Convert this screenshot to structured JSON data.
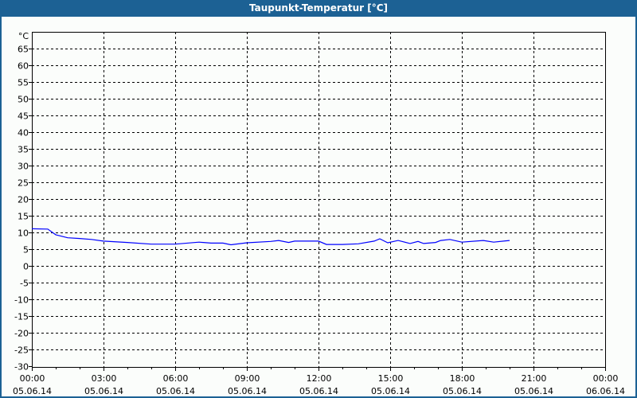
{
  "window": {
    "title": "Taupunkt-Temperatur [°C]"
  },
  "chart_data": {
    "type": "line",
    "title": "Taupunkt-Temperatur [°C]",
    "ylabel": "°C",
    "ylim": [
      -30,
      70
    ],
    "yticks": [
      65,
      60,
      55,
      50,
      45,
      40,
      35,
      30,
      25,
      20,
      15,
      10,
      5,
      0,
      -5,
      -10,
      -15,
      -20,
      -25,
      -30
    ],
    "xlim_hours": [
      0,
      24
    ],
    "xticks": [
      {
        "time": "00:00",
        "date": "05.06.14"
      },
      {
        "time": "03:00",
        "date": "05.06.14"
      },
      {
        "time": "06:00",
        "date": "05.06.14"
      },
      {
        "time": "09:00",
        "date": "05.06.14"
      },
      {
        "time": "12:00",
        "date": "05.06.14"
      },
      {
        "time": "15:00",
        "date": "05.06.14"
      },
      {
        "time": "18:00",
        "date": "05.06.14"
      },
      {
        "time": "21:00",
        "date": "05.06.14"
      },
      {
        "time": "00:00",
        "date": "06.06.14"
      }
    ],
    "grid": true,
    "line_color": "#0000ff",
    "series": [
      {
        "x": [
          "00:00",
          "00:40",
          "01:00",
          "01:30",
          "02:00",
          "02:30",
          "03:00",
          "04:00",
          "05:00",
          "06:00",
          "07:00",
          "07:30",
          "08:00",
          "08:20",
          "09:00",
          "10:00",
          "10:20",
          "10:45",
          "11:00",
          "12:00",
          "12:20",
          "13:00",
          "13:40",
          "14:20",
          "14:34",
          "14:54",
          "15:20",
          "15:50",
          "16:10",
          "16:24",
          "16:54",
          "17:07",
          "17:30",
          "18:00",
          "18:54",
          "19:20",
          "20:00"
        ],
        "values": [
          11.1,
          11.0,
          9.3,
          8.4,
          8.2,
          7.9,
          7.4,
          7.0,
          6.5,
          6.5,
          7.1,
          6.8,
          6.8,
          6.3,
          6.9,
          7.3,
          7.6,
          7.0,
          7.4,
          7.4,
          6.4,
          6.4,
          6.6,
          7.4,
          8.1,
          6.9,
          7.6,
          6.7,
          7.3,
          6.7,
          7.0,
          7.6,
          7.9,
          7.1,
          7.6,
          7.1,
          7.6
        ]
      }
    ]
  }
}
